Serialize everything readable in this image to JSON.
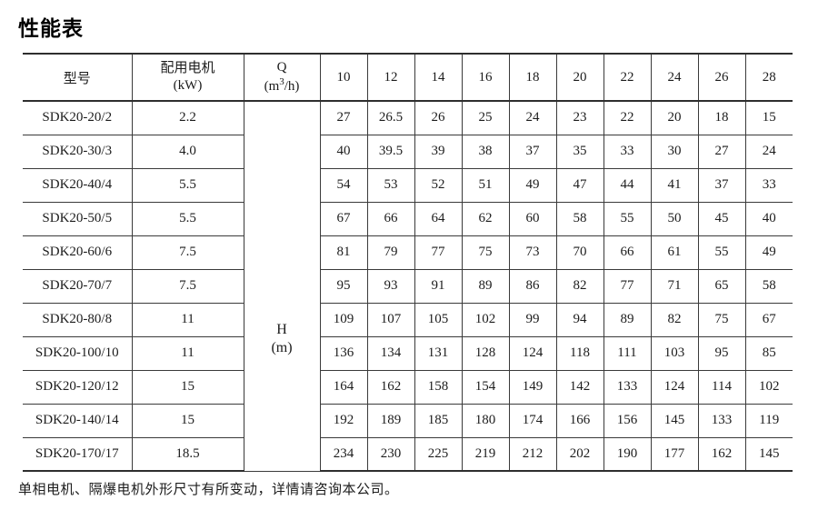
{
  "page": {
    "title": "性能表",
    "footnote": "单相电机、隔爆电机外形尺寸有所变动，详情请咨询本公司。"
  },
  "table": {
    "headers": {
      "model": "型号",
      "motor_line1": "配用电机",
      "motor_line2": "(kW)",
      "q_label": "Q",
      "q_unit_pre": "(m",
      "q_unit_sup": "3",
      "q_unit_post": "/h)",
      "h_label": "H",
      "h_unit": "(m)",
      "flow_values": [
        "10",
        "12",
        "14",
        "16",
        "18",
        "20",
        "22",
        "24",
        "26",
        "28"
      ]
    },
    "rows": [
      {
        "model": "SDK20-20/2",
        "kw": "2.2",
        "h": [
          "27",
          "26.5",
          "26",
          "25",
          "24",
          "23",
          "22",
          "20",
          "18",
          "15"
        ]
      },
      {
        "model": "SDK20-30/3",
        "kw": "4.0",
        "h": [
          "40",
          "39.5",
          "39",
          "38",
          "37",
          "35",
          "33",
          "30",
          "27",
          "24"
        ]
      },
      {
        "model": "SDK20-40/4",
        "kw": "5.5",
        "h": [
          "54",
          "53",
          "52",
          "51",
          "49",
          "47",
          "44",
          "41",
          "37",
          "33"
        ]
      },
      {
        "model": "SDK20-50/5",
        "kw": "5.5",
        "h": [
          "67",
          "66",
          "64",
          "62",
          "60",
          "58",
          "55",
          "50",
          "45",
          "40"
        ]
      },
      {
        "model": "SDK20-60/6",
        "kw": "7.5",
        "h": [
          "81",
          "79",
          "77",
          "75",
          "73",
          "70",
          "66",
          "61",
          "55",
          "49"
        ]
      },
      {
        "model": "SDK20-70/7",
        "kw": "7.5",
        "h": [
          "95",
          "93",
          "91",
          "89",
          "86",
          "82",
          "77",
          "71",
          "65",
          "58"
        ]
      },
      {
        "model": "SDK20-80/8",
        "kw": "11",
        "h": [
          "109",
          "107",
          "105",
          "102",
          "99",
          "94",
          "89",
          "82",
          "75",
          "67"
        ]
      },
      {
        "model": "SDK20-100/10",
        "kw": "11",
        "h": [
          "136",
          "134",
          "131",
          "128",
          "124",
          "118",
          "111",
          "103",
          "95",
          "85"
        ]
      },
      {
        "model": "SDK20-120/12",
        "kw": "15",
        "h": [
          "164",
          "162",
          "158",
          "154",
          "149",
          "142",
          "133",
          "124",
          "114",
          "102"
        ]
      },
      {
        "model": "SDK20-140/14",
        "kw": "15",
        "h": [
          "192",
          "189",
          "185",
          "180",
          "174",
          "166",
          "156",
          "145",
          "133",
          "119"
        ]
      },
      {
        "model": "SDK20-170/17",
        "kw": "18.5",
        "h": [
          "234",
          "230",
          "225",
          "219",
          "212",
          "202",
          "190",
          "177",
          "162",
          "145"
        ]
      }
    ]
  }
}
